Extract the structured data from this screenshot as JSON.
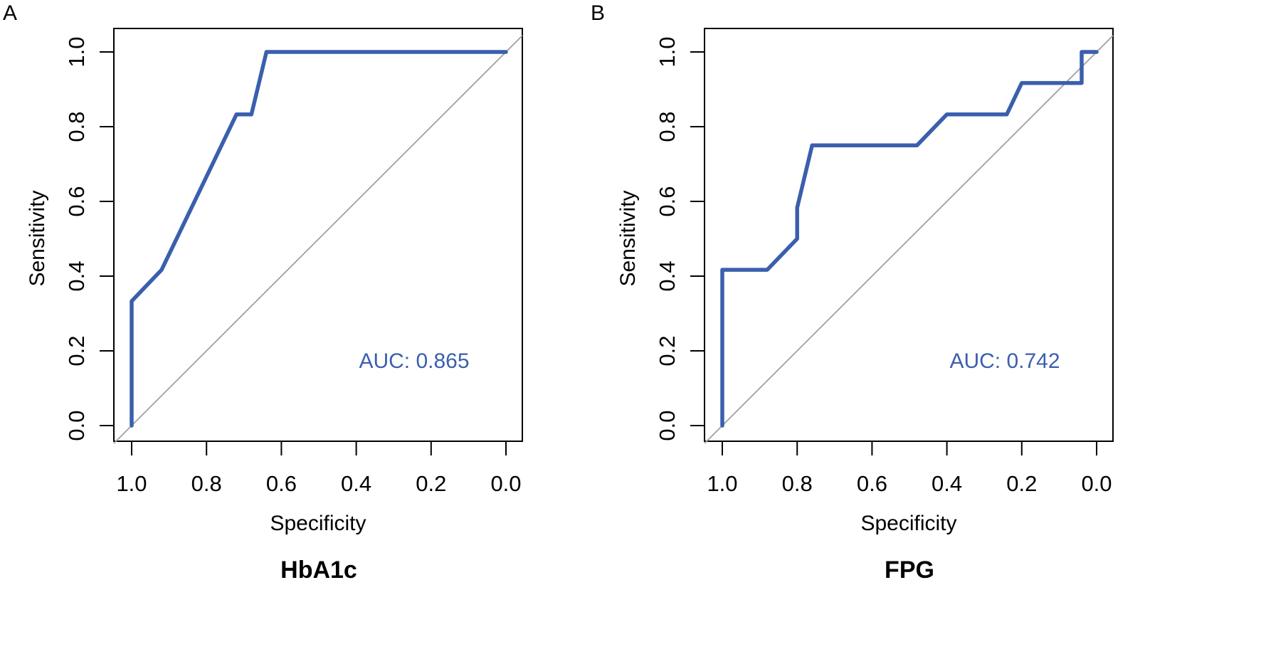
{
  "chart_data": [
    {
      "type": "line",
      "panel_label": "A",
      "caption": "HbA1c",
      "xlabel": "Specificity",
      "ylabel": "Sensitivity",
      "xlim": [
        1.0,
        0.0
      ],
      "ylim": [
        0.0,
        1.0
      ],
      "x_reversed": true,
      "xticks": [
        "1.0",
        "0.8",
        "0.6",
        "0.4",
        "0.2",
        "0.0"
      ],
      "yticks": [
        "0.0",
        "0.2",
        "0.4",
        "0.6",
        "0.8",
        "1.0"
      ],
      "annotation": "AUC: 0.865",
      "diagonal_reference": true,
      "line_color": "#3a5fad",
      "diagonal_color": "#a0a0a0",
      "series": [
        {
          "x": [
            1.0,
            1.0,
            0.92,
            0.72,
            0.68,
            0.64,
            0.0
          ],
          "y": [
            0.0,
            0.333,
            0.417,
            0.833,
            0.833,
            1.0,
            1.0
          ]
        }
      ]
    },
    {
      "type": "line",
      "panel_label": "B",
      "caption": "FPG",
      "xlabel": "Specificity",
      "ylabel": "Sensitivity",
      "xlim": [
        1.0,
        0.0
      ],
      "ylim": [
        0.0,
        1.0
      ],
      "x_reversed": true,
      "xticks": [
        "1.0",
        "0.8",
        "0.6",
        "0.4",
        "0.2",
        "0.0"
      ],
      "yticks": [
        "0.0",
        "0.2",
        "0.4",
        "0.6",
        "0.8",
        "1.0"
      ],
      "annotation": "AUC: 0.742",
      "diagonal_reference": true,
      "line_color": "#3a5fad",
      "diagonal_color": "#a0a0a0",
      "series": [
        {
          "x": [
            1.0,
            1.0,
            0.88,
            0.8,
            0.8,
            0.76,
            0.48,
            0.4,
            0.24,
            0.2,
            0.04,
            0.04,
            0.0
          ],
          "y": [
            0.0,
            0.417,
            0.417,
            0.5,
            0.583,
            0.75,
            0.75,
            0.833,
            0.833,
            0.917,
            0.917,
            1.0,
            1.0
          ]
        }
      ]
    }
  ]
}
